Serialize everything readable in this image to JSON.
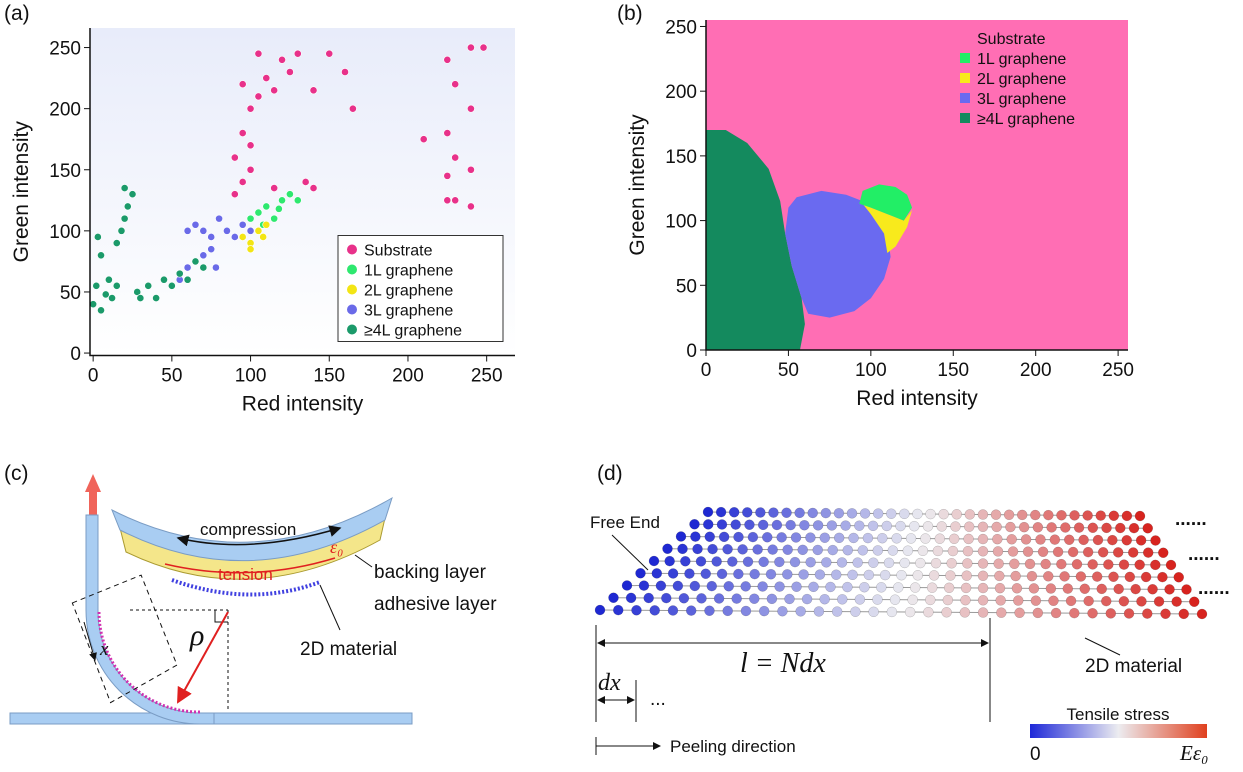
{
  "chart_data": [
    {
      "type": "scatter",
      "panel_label": "(a)",
      "xlabel": "Red intensity",
      "ylabel": "Green intensity",
      "xlim": [
        -2,
        268
      ],
      "ylim": [
        -2,
        266
      ],
      "xticks": [
        0,
        50,
        100,
        150,
        200,
        250
      ],
      "yticks": [
        0,
        50,
        100,
        150,
        200,
        250
      ],
      "legend": "lower right",
      "marker": "circle",
      "series": [
        {
          "name": "Substrate",
          "color": "#e8318a",
          "x": [
            90,
            95,
            100,
            95,
            100,
            105,
            110,
            120,
            130,
            150,
            160,
            165,
            140,
            125,
            115,
            95,
            90,
            100,
            115,
            125,
            135,
            140,
            105,
            210,
            225,
            225,
            225,
            230,
            230,
            240,
            240,
            240,
            240,
            248,
            225,
            230
          ],
          "values": [
            130,
            140,
            150,
            180,
            200,
            210,
            225,
            240,
            245,
            245,
            230,
            200,
            215,
            230,
            215,
            220,
            160,
            170,
            135,
            130,
            140,
            135,
            245,
            175,
            240,
            180,
            145,
            220,
            160,
            250,
            200,
            150,
            120,
            250,
            125,
            125
          ]
        },
        {
          "name": "1L graphene",
          "color": "#2ee86f",
          "x": [
            100,
            105,
            110,
            115,
            120,
            125,
            108,
            118,
            130
          ],
          "values": [
            110,
            115,
            120,
            110,
            125,
            130,
            105,
            118,
            125
          ]
        },
        {
          "name": "2L graphene",
          "color": "#f3e514",
          "x": [
            95,
            100,
            105,
            110,
            100,
            108
          ],
          "values": [
            95,
            90,
            100,
            105,
            85,
            95
          ]
        },
        {
          "name": "3L graphene",
          "color": "#6a6ae8",
          "x": [
            55,
            60,
            65,
            70,
            75,
            65,
            70,
            75,
            80,
            85,
            90,
            95,
            100,
            60,
            78
          ],
          "values": [
            60,
            70,
            75,
            80,
            85,
            105,
            100,
            95,
            110,
            100,
            95,
            105,
            100,
            100,
            70
          ]
        },
        {
          "name": "≥4L graphene",
          "color": "#1b9a6a",
          "x": [
            0,
            2,
            5,
            8,
            10,
            12,
            15,
            18,
            20,
            22,
            25,
            20,
            5,
            3,
            28,
            35,
            40,
            45,
            50,
            55,
            60,
            65,
            70,
            30,
            15
          ],
          "values": [
            40,
            55,
            35,
            48,
            60,
            45,
            90,
            100,
            110,
            120,
            130,
            135,
            80,
            95,
            50,
            55,
            45,
            60,
            55,
            65,
            60,
            75,
            70,
            45,
            55
          ]
        }
      ]
    },
    {
      "type": "region",
      "panel_label": "(b)",
      "xlabel": "Red intensity",
      "ylabel": "Green intensity",
      "xlim": [
        0,
        256
      ],
      "ylim": [
        0,
        255
      ],
      "xticks": [
        0,
        50,
        100,
        150,
        200,
        250
      ],
      "yticks": [
        0,
        50,
        100,
        150,
        200,
        250
      ],
      "legend": "upper right",
      "marker": "square",
      "series": [
        {
          "name": "Substrate",
          "color": "#ff6eb4",
          "x": [
            0,
            256,
            256,
            0
          ],
          "values": [
            0,
            0,
            255,
            255
          ]
        },
        {
          "name": "1L graphene",
          "color": "#22ee66",
          "x": [
            93,
            95,
            105,
            115,
            122,
            125,
            120,
            110,
            100
          ],
          "values": [
            113,
            123,
            128,
            126,
            120,
            110,
            100,
            105,
            110
          ]
        },
        {
          "name": "2L graphene",
          "color": "#f8ea1c",
          "x": [
            95,
            100,
            110,
            120,
            125,
            122,
            115,
            110,
            108,
            100
          ],
          "values": [
            113,
            110,
            105,
            100,
            108,
            95,
            80,
            75,
            90,
            105
          ]
        },
        {
          "name": "3L graphene",
          "color": "#6a6af0",
          "x": [
            50,
            55,
            70,
            85,
            95,
            100,
            110,
            112,
            108,
            100,
            90,
            75,
            62,
            58,
            52,
            48
          ],
          "values": [
            110,
            118,
            123,
            120,
            115,
            105,
            90,
            72,
            55,
            40,
            30,
            25,
            28,
            40,
            65,
            90
          ]
        },
        {
          "name": "≥4L graphene",
          "color": "#148a5e",
          "x": [
            0,
            0,
            12,
            25,
            38,
            45,
            48,
            52,
            58,
            60,
            57
          ],
          "values": [
            0,
            170,
            170,
            160,
            140,
            115,
            90,
            65,
            40,
            20,
            0
          ]
        }
      ]
    }
  ],
  "panel_c": {
    "label": "(c)",
    "compression": "compression",
    "tension": "tension",
    "strain": "ε₀",
    "backing": "backing layer",
    "adhesive": "adhesive layer",
    "material": "2D material",
    "rho": "ρ",
    "x": "x"
  },
  "panel_d": {
    "label": "(d)",
    "free_end": "Free End",
    "length": "l = Ndx",
    "dx": "dx",
    "ellipsis": "...",
    "dots": [
      "......",
      "......",
      "......"
    ],
    "material": "2D material",
    "colorbar_title": "Tensile stress",
    "colorbar_min": "0",
    "colorbar_max": "Eε₀",
    "peeling": "Peeling direction"
  }
}
